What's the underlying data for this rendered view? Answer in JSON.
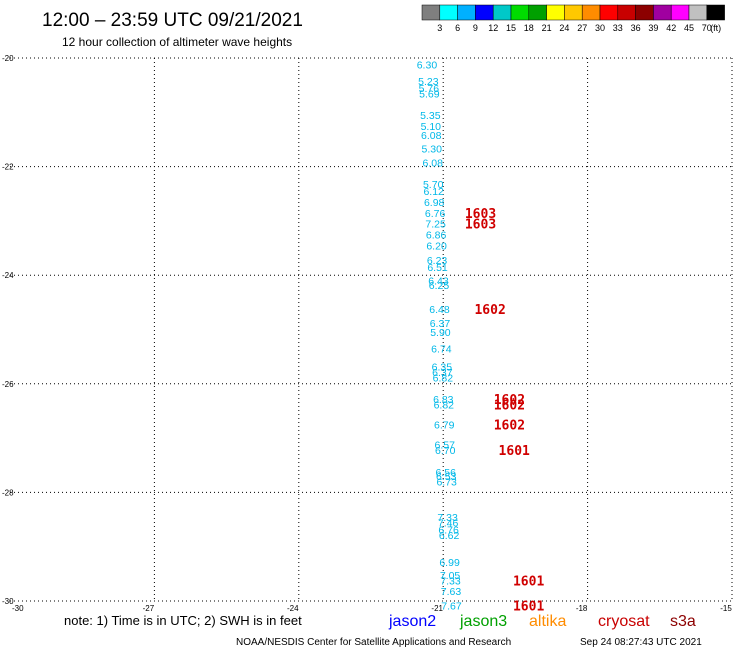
{
  "title": "12:00 – 23:59 UTC 09/21/2021",
  "subtitle": "12 hour collection of altimeter wave heights",
  "colorbar": {
    "colors": [
      "#7f7f7f",
      "#00ffff",
      "#00b0ff",
      "#0000ff",
      "#00c8c8",
      "#00dc00",
      "#00a000",
      "#ffff00",
      "#ffc800",
      "#ff8c00",
      "#ff0000",
      "#c80000",
      "#8c0000",
      "#a000a0",
      "#ff00ff",
      "#c0c0c0",
      "#000000"
    ],
    "labels": [
      "3",
      "6",
      "9",
      "12",
      "15",
      "18",
      "21",
      "24",
      "27",
      "30",
      "33",
      "36",
      "39",
      "42",
      "45",
      "70",
      "(ft)"
    ]
  },
  "note": "note:  1) Time is in UTC;  2) SWH is in feet",
  "satellites": [
    {
      "name": "jason2",
      "color": "#0000ff"
    },
    {
      "name": "jason3",
      "color": "#00a000"
    },
    {
      "name": "altika",
      "color": "#ff8c00"
    },
    {
      "name": "cryosat",
      "color": "#c80000"
    },
    {
      "name": "s3a",
      "color": "#8c0000"
    }
  ],
  "footer_center": "NOAA/NESDIS Center for Satellite Applications and Research",
  "footer_right": "Sep 24 08:27:43 UTC 2021",
  "chart_data": {
    "type": "scatter",
    "xlim": [
      -30,
      -15
    ],
    "ylim": [
      -30,
      -20
    ],
    "x_ticks": [
      "-30",
      "-27",
      "-24",
      "-21",
      "-18",
      "-15"
    ],
    "y_ticks": [
      "-20",
      "-22",
      "-24",
      "-26",
      "-28",
      "-30"
    ],
    "grid": true,
    "points_series": {
      "name": "altimeter wave heights",
      "text_color": "#00b8e8",
      "points": [
        {
          "x": -21.55,
          "y": -20.12,
          "label": "6.30"
        },
        {
          "x": -21.52,
          "y": -20.42,
          "label": "5.23"
        },
        {
          "x": -21.51,
          "y": -20.55,
          "label": "5.76"
        },
        {
          "x": -21.5,
          "y": -20.65,
          "label": "5.69"
        },
        {
          "x": -21.48,
          "y": -21.05,
          "label": "5.35"
        },
        {
          "x": -21.47,
          "y": -21.25,
          "label": "5.10"
        },
        {
          "x": -21.46,
          "y": -21.42,
          "label": "6.08"
        },
        {
          "x": -21.45,
          "y": -21.67,
          "label": "5.30"
        },
        {
          "x": -21.43,
          "y": -21.92,
          "label": "6.08"
        },
        {
          "x": -21.42,
          "y": -22.32,
          "label": "5.70"
        },
        {
          "x": -21.41,
          "y": -22.45,
          "label": "6.12"
        },
        {
          "x": -21.4,
          "y": -22.65,
          "label": "6.98"
        },
        {
          "x": -21.38,
          "y": -22.85,
          "label": "6.76"
        },
        {
          "x": -21.37,
          "y": -23.05,
          "label": "7.25"
        },
        {
          "x": -21.36,
          "y": -23.25,
          "label": "6.86"
        },
        {
          "x": -21.35,
          "y": -23.45,
          "label": "6.20"
        },
        {
          "x": -21.34,
          "y": -23.72,
          "label": "6.23"
        },
        {
          "x": -21.33,
          "y": -23.85,
          "label": "6.51"
        },
        {
          "x": -21.31,
          "y": -24.1,
          "label": "6.43"
        },
        {
          "x": -21.3,
          "y": -24.18,
          "label": "6.25"
        },
        {
          "x": -21.29,
          "y": -24.62,
          "label": "6.48"
        },
        {
          "x": -21.28,
          "y": -24.88,
          "label": "6.37"
        },
        {
          "x": -21.27,
          "y": -25.05,
          "label": "5.90"
        },
        {
          "x": -21.25,
          "y": -25.35,
          "label": "6.74"
        },
        {
          "x": -21.24,
          "y": -25.68,
          "label": "6.35"
        },
        {
          "x": -21.23,
          "y": -25.78,
          "label": "6.37"
        },
        {
          "x": -21.22,
          "y": -25.88,
          "label": "6.82"
        },
        {
          "x": -21.21,
          "y": -26.28,
          "label": "6.83"
        },
        {
          "x": -21.2,
          "y": -26.38,
          "label": "6.82"
        },
        {
          "x": -21.19,
          "y": -26.75,
          "label": "6.79"
        },
        {
          "x": -21.18,
          "y": -27.12,
          "label": "6.57"
        },
        {
          "x": -21.17,
          "y": -27.22,
          "label": "6.70"
        },
        {
          "x": -21.16,
          "y": -27.62,
          "label": "6.56"
        },
        {
          "x": -21.15,
          "y": -27.7,
          "label": "6.53"
        },
        {
          "x": -21.14,
          "y": -27.8,
          "label": "6.73"
        },
        {
          "x": -21.12,
          "y": -28.45,
          "label": "7.33"
        },
        {
          "x": -21.11,
          "y": -28.55,
          "label": "7.46"
        },
        {
          "x": -21.1,
          "y": -28.68,
          "label": "6.76"
        },
        {
          "x": -21.09,
          "y": -28.78,
          "label": "6.62"
        },
        {
          "x": -21.08,
          "y": -29.28,
          "label": "6.99"
        },
        {
          "x": -21.07,
          "y": -29.52,
          "label": "7.05"
        },
        {
          "x": -21.06,
          "y": -29.62,
          "label": "7.33"
        },
        {
          "x": -21.05,
          "y": -29.82,
          "label": "7.63"
        },
        {
          "x": -21.04,
          "y": -30.08,
          "label": "7.67"
        }
      ]
    },
    "time_series": {
      "name": "pass times",
      "text_color": "#d00000",
      "points": [
        {
          "x": -20.55,
          "y": -22.85,
          "label": "1603"
        },
        {
          "x": -20.55,
          "y": -23.05,
          "label": "1603"
        },
        {
          "x": -20.35,
          "y": -24.62,
          "label": "1602"
        },
        {
          "x": -19.95,
          "y": -26.28,
          "label": "1602"
        },
        {
          "x": -19.95,
          "y": -26.38,
          "label": "1602"
        },
        {
          "x": -19.95,
          "y": -26.75,
          "label": "1602"
        },
        {
          "x": -19.85,
          "y": -27.22,
          "label": "1601"
        },
        {
          "x": -19.55,
          "y": -29.62,
          "label": "1601"
        },
        {
          "x": -19.55,
          "y": -30.08,
          "label": "1601"
        }
      ]
    }
  }
}
